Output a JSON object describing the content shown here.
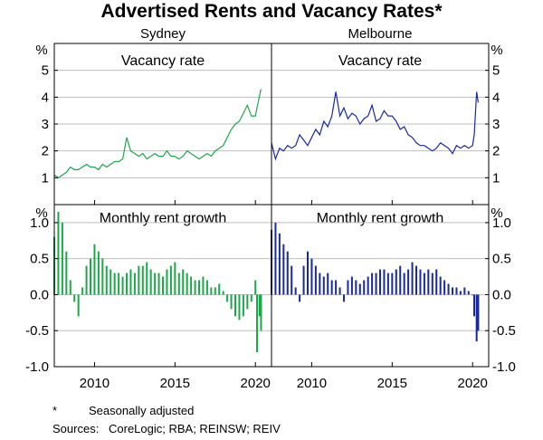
{
  "title": "Advertised Rents and Vacancy Rates*",
  "columns": [
    "Sydney",
    "Melbourne"
  ],
  "footnote": {
    "marker": "*",
    "text": "Seasonally adjusted"
  },
  "sources": {
    "label": "Sources:",
    "text": "CoreLogic; RBA; REINSW; REIV"
  },
  "colors": {
    "sydney": "#1fa64a",
    "melbourne": "#1a2a9c",
    "grid": "#bdbdbd",
    "frame": "#000000"
  },
  "chart_data": [
    {
      "type": "line",
      "panel": "Vacancy rate",
      "unit": "%",
      "ylim": [
        0,
        6
      ],
      "yticks": [
        1,
        2,
        3,
        4,
        5
      ],
      "xlim": [
        2007.5,
        2021.0
      ],
      "xticks": [
        2010,
        2015,
        2020
      ],
      "grid": true,
      "series": [
        {
          "name": "Sydney",
          "color": "#1fa64a",
          "x": [
            2007.5,
            2007.75,
            2008.0,
            2008.25,
            2008.5,
            2008.75,
            2009.0,
            2009.25,
            2009.5,
            2009.75,
            2010.0,
            2010.25,
            2010.5,
            2010.75,
            2011.0,
            2011.25,
            2011.5,
            2011.75,
            2012.0,
            2012.25,
            2012.5,
            2012.75,
            2013.0,
            2013.25,
            2013.5,
            2013.75,
            2014.0,
            2014.25,
            2014.5,
            2014.75,
            2015.0,
            2015.25,
            2015.5,
            2015.75,
            2016.0,
            2016.25,
            2016.5,
            2016.75,
            2017.0,
            2017.25,
            2017.5,
            2017.75,
            2018.0,
            2018.25,
            2018.5,
            2018.75,
            2019.0,
            2019.25,
            2019.5,
            2019.75,
            2020.0,
            2020.2,
            2020.35
          ],
          "y": [
            1.1,
            1.0,
            1.1,
            1.2,
            1.4,
            1.3,
            1.3,
            1.4,
            1.5,
            1.4,
            1.4,
            1.3,
            1.5,
            1.4,
            1.5,
            1.6,
            1.6,
            1.7,
            2.5,
            2.0,
            1.9,
            1.8,
            1.9,
            1.7,
            1.8,
            1.9,
            1.8,
            1.8,
            2.0,
            1.8,
            1.8,
            1.7,
            1.8,
            2.0,
            1.9,
            1.8,
            1.7,
            1.8,
            1.9,
            1.8,
            2.0,
            2.1,
            2.2,
            2.5,
            2.8,
            3.0,
            3.1,
            3.4,
            3.7,
            3.3,
            3.3,
            3.9,
            4.3
          ]
        },
        {
          "name": "Melbourne",
          "color": "#1a2a9c",
          "x": [
            2007.5,
            2007.75,
            2008.0,
            2008.25,
            2008.5,
            2008.75,
            2009.0,
            2009.25,
            2009.5,
            2009.75,
            2010.0,
            2010.25,
            2010.5,
            2010.75,
            2011.0,
            2011.25,
            2011.5,
            2011.75,
            2012.0,
            2012.25,
            2012.5,
            2012.75,
            2013.0,
            2013.25,
            2013.5,
            2013.75,
            2014.0,
            2014.25,
            2014.5,
            2014.75,
            2015.0,
            2015.25,
            2015.5,
            2015.75,
            2016.0,
            2016.25,
            2016.5,
            2016.75,
            2017.0,
            2017.25,
            2017.5,
            2017.75,
            2018.0,
            2018.25,
            2018.5,
            2018.75,
            2019.0,
            2019.25,
            2019.5,
            2019.75,
            2020.0,
            2020.1,
            2020.25,
            2020.35
          ],
          "y": [
            2.3,
            1.7,
            2.1,
            2.0,
            2.2,
            2.1,
            2.2,
            2.6,
            2.4,
            2.2,
            2.5,
            2.8,
            2.6,
            3.1,
            2.9,
            3.3,
            4.2,
            3.3,
            3.6,
            3.2,
            3.4,
            3.3,
            3.0,
            3.2,
            3.3,
            3.7,
            3.1,
            3.2,
            3.5,
            3.3,
            3.3,
            3.1,
            2.8,
            2.9,
            2.6,
            2.5,
            2.3,
            2.2,
            2.2,
            2.1,
            2.0,
            2.1,
            2.3,
            2.2,
            2.1,
            1.9,
            2.2,
            2.1,
            2.2,
            2.1,
            2.2,
            2.6,
            4.2,
            3.8
          ]
        }
      ]
    },
    {
      "type": "bar",
      "panel": "Monthly rent growth",
      "unit": "%",
      "ylim": [
        -1.0,
        1.25
      ],
      "yticks": [
        1.0,
        0.5,
        0.0,
        -0.5,
        -1.0
      ],
      "ytick_labels": [
        "1.0",
        "0.5",
        "0.0",
        "-0.5",
        "-1.0"
      ],
      "xlim": [
        2007.5,
        2021.0
      ],
      "xticks": [
        2010,
        2015,
        2020
      ],
      "grid": true,
      "series": [
        {
          "name": "Sydney",
          "color": "#1fa64a",
          "x": [
            2007.5,
            2007.75,
            2008.0,
            2008.25,
            2008.5,
            2008.75,
            2009.0,
            2009.25,
            2009.5,
            2009.75,
            2010.0,
            2010.25,
            2010.5,
            2010.75,
            2011.0,
            2011.25,
            2011.5,
            2011.75,
            2012.0,
            2012.25,
            2012.5,
            2012.75,
            2013.0,
            2013.25,
            2013.5,
            2013.75,
            2014.0,
            2014.25,
            2014.5,
            2014.75,
            2015.0,
            2015.25,
            2015.5,
            2015.75,
            2016.0,
            2016.25,
            2016.5,
            2016.75,
            2017.0,
            2017.25,
            2017.5,
            2017.75,
            2018.0,
            2018.25,
            2018.5,
            2018.75,
            2019.0,
            2019.25,
            2019.5,
            2019.75,
            2020.0,
            2020.1,
            2020.25,
            2020.35
          ],
          "values": [
            0.8,
            1.15,
            1.0,
            0.6,
            0.2,
            -0.1,
            -0.3,
            0.1,
            0.4,
            0.5,
            0.7,
            0.6,
            0.5,
            0.4,
            0.35,
            0.3,
            0.3,
            0.25,
            0.3,
            0.35,
            0.3,
            0.4,
            0.4,
            0.45,
            0.35,
            0.3,
            0.3,
            0.25,
            0.35,
            0.4,
            0.45,
            0.3,
            0.35,
            0.3,
            0.25,
            0.2,
            0.2,
            0.25,
            0.2,
            0.1,
            0.1,
            0.15,
            0.05,
            -0.1,
            -0.2,
            -0.3,
            -0.35,
            -0.3,
            -0.2,
            -0.1,
            0.2,
            -0.8,
            -0.3,
            -0.5
          ]
        },
        {
          "name": "Melbourne",
          "color": "#1a2a9c",
          "x": [
            2007.5,
            2007.75,
            2008.0,
            2008.25,
            2008.5,
            2008.75,
            2009.0,
            2009.25,
            2009.5,
            2009.75,
            2010.0,
            2010.25,
            2010.5,
            2010.75,
            2011.0,
            2011.25,
            2011.5,
            2011.75,
            2012.0,
            2012.25,
            2012.5,
            2012.75,
            2013.0,
            2013.25,
            2013.5,
            2013.75,
            2014.0,
            2014.25,
            2014.5,
            2014.75,
            2015.0,
            2015.25,
            2015.5,
            2015.75,
            2016.0,
            2016.25,
            2016.5,
            2016.75,
            2017.0,
            2017.25,
            2017.5,
            2017.75,
            2018.0,
            2018.25,
            2018.5,
            2018.75,
            2019.0,
            2019.25,
            2019.5,
            2019.75,
            2020.0,
            2020.1,
            2020.25,
            2020.35
          ],
          "values": [
            0.9,
            1.0,
            0.85,
            0.7,
            0.6,
            0.4,
            0.1,
            -0.1,
            0.4,
            0.6,
            0.5,
            0.4,
            0.3,
            0.25,
            0.3,
            0.2,
            0.2,
            0.1,
            -0.1,
            0.2,
            0.25,
            0.2,
            0.15,
            0.2,
            0.25,
            0.3,
            0.3,
            0.35,
            0.35,
            0.3,
            0.3,
            0.35,
            0.4,
            0.3,
            0.35,
            0.45,
            0.4,
            0.35,
            0.3,
            0.35,
            0.3,
            0.35,
            0.25,
            0.2,
            0.15,
            0.1,
            0.1,
            0.05,
            0.1,
            0.05,
            0.0,
            -0.3,
            -0.65,
            -0.5
          ]
        }
      ]
    }
  ]
}
